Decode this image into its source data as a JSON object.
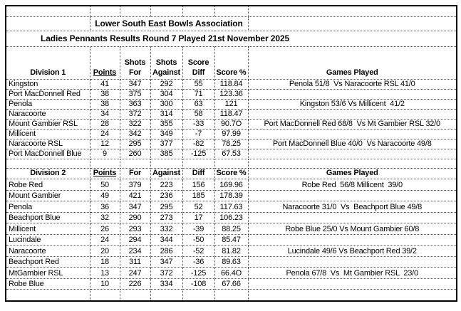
{
  "titles": {
    "association": "Lower South East Bowls Association",
    "subtitle": "Ladies Pennants Results Round 7 Played 21st November 2025"
  },
  "division1": {
    "name": "Division 1",
    "headers": {
      "points": "Points",
      "for": "Shots\nFor",
      "against": "Shots\nAgainst",
      "diff": "Score\nDiff",
      "pct": "Score %",
      "games": "Games Played"
    },
    "rows": [
      {
        "team": "Kingston",
        "points": "41",
        "for": "347",
        "against": "292",
        "diff": "55",
        "pct": "118.84",
        "game": "Penola 51/8  Vs Naracoorte RSL 41/0"
      },
      {
        "team": "Port MacDonnell Red",
        "points": "38",
        "for": "375",
        "against": "304",
        "diff": "71",
        "pct": "123.36",
        "game": ""
      },
      {
        "team": "Penola",
        "points": "38",
        "for": "363",
        "against": "300",
        "diff": "63",
        "pct": "121",
        "game": "Kingston 53/6 Vs Millicent  41/2"
      },
      {
        "team": "Naracoorte",
        "points": "34",
        "for": "372",
        "against": "314",
        "diff": "58",
        "pct": "118.47",
        "game": ""
      },
      {
        "team": "Mount Gambier RSL",
        "points": "28",
        "for": "322",
        "against": "355",
        "diff": "-33",
        "pct": "90.7O",
        "game": "Port MacDonnell Red 68/8  Vs Mt Gambier RSL 32/0"
      },
      {
        "team": "Millicent",
        "points": "24",
        "for": "342",
        "against": "349",
        "diff": "-7",
        "pct": "97.99",
        "game": ""
      },
      {
        "team": "Naracoorte RSL",
        "points": "12",
        "for": "295",
        "against": "377",
        "diff": "-82",
        "pct": "78.25",
        "game": "Port MacDonnell Blue 40/0  Vs Naracoorte 49/8"
      },
      {
        "team": "Port MacDonnell Blue",
        "points": "9",
        "for": "260",
        "against": "385",
        "diff": "-125",
        "pct": "67.53",
        "game": ""
      }
    ]
  },
  "division2": {
    "name": "Division 2",
    "headers": {
      "points": "Points",
      "for": "For",
      "against": "Against",
      "diff": "Diff",
      "pct": "Score %",
      "games": "Games Played"
    },
    "rows": [
      {
        "team": "Robe Red",
        "points": "50",
        "for": "379",
        "against": "223",
        "diff": "156",
        "pct": "169.96",
        "game": "Robe Red  56/8 Millicent  39/0"
      },
      {
        "team": "Mount Gambier",
        "points": "49",
        "for": "421",
        "against": "236",
        "diff": "185",
        "pct": "178.39",
        "game": ""
      },
      {
        "team": "Penola",
        "points": "36",
        "for": "347",
        "against": "295",
        "diff": "52",
        "pct": "117.63",
        "game": "Naracoorte 31/0  Vs  Beachport Blue 49/8"
      },
      {
        "team": "Beachport Blue",
        "points": "32",
        "for": "290",
        "against": "273",
        "diff": "17",
        "pct": "106.23",
        "game": ""
      },
      {
        "team": "Millicent",
        "points": "26",
        "for": "293",
        "against": "332",
        "diff": "-39",
        "pct": "88.25",
        "game": "Robe Blue 25/0 Vs Mount Gambier 60/8"
      },
      {
        "team": "Lucindale",
        "points": "24",
        "for": "294",
        "against": "344",
        "diff": "-50",
        "pct": "85.47",
        "game": ""
      },
      {
        "team": "Naracoorte",
        "points": "20",
        "for": "234",
        "against": "286",
        "diff": "-52",
        "pct": "81.82",
        "game": "Lucindale 49/6 Vs Beachport Red 39/2"
      },
      {
        "team": "Beachport Red",
        "points": "18",
        "for": "311",
        "against": "347",
        "diff": "-36",
        "pct": "89.63",
        "game": ""
      },
      {
        "team": "MtGambier RSL",
        "points": "13",
        "for": "247",
        "against": "372",
        "diff": "-125",
        "pct": "66.4O",
        "game": "Penola 67/8  Vs  Mt Gambier RSL  23/0"
      },
      {
        "team": "Robe Blue",
        "points": "10",
        "for": "226",
        "against": "334",
        "diff": "-108",
        "pct": "67.66",
        "game": ""
      }
    ]
  }
}
